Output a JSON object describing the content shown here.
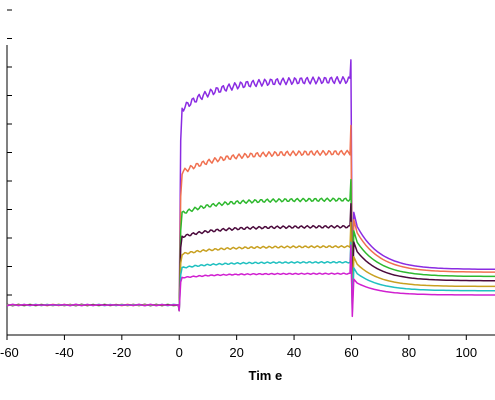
{
  "chart_data": {
    "type": "line",
    "title": "",
    "xlabel": "Tim e",
    "ylabel": "",
    "xlim": [
      -60,
      110
    ],
    "ylim": [
      0,
      10
    ],
    "xticks": [
      -60,
      -40,
      -20,
      0,
      20,
      40,
      60,
      80,
      100
    ],
    "xtick_labels": [
      "-60",
      "-40",
      "-20",
      "0",
      "20",
      "40",
      "60",
      "80",
      "100"
    ],
    "yticks": [
      0,
      1,
      2,
      3,
      4,
      5,
      6,
      7,
      8,
      9,
      10
    ],
    "grid": false,
    "legend": "none",
    "series": [
      {
        "color": "#8a2be2",
        "plateau": 7.9,
        "end": 1.25,
        "spike": 8.6,
        "spikeOffset": 0.7
      },
      {
        "color": "#f07050",
        "plateau": 5.35,
        "end": 1.15,
        "spike": 6.3,
        "spikeOffset": 0.5
      },
      {
        "color": "#2db82d",
        "plateau": 3.7,
        "end": 1.0,
        "spike": 4.4,
        "spikeOffset": 0.35
      },
      {
        "color": "#4b0a3c",
        "plateau": 2.75,
        "end": 0.85,
        "spike": 3.55,
        "spikeOffset": 0.15
      },
      {
        "color": "#c8a020",
        "plateau": 2.05,
        "end": 0.65,
        "spike": 2.9,
        "spikeOffset": -0.1
      },
      {
        "color": "#20c0c0",
        "plateau": 1.5,
        "end": 0.5,
        "spike": 2.2,
        "spikeOffset": -0.25
      },
      {
        "color": "#d020d0",
        "plateau": 1.1,
        "end": 0.35,
        "spike": 2.1,
        "spikeOffset": -0.4
      }
    ]
  }
}
